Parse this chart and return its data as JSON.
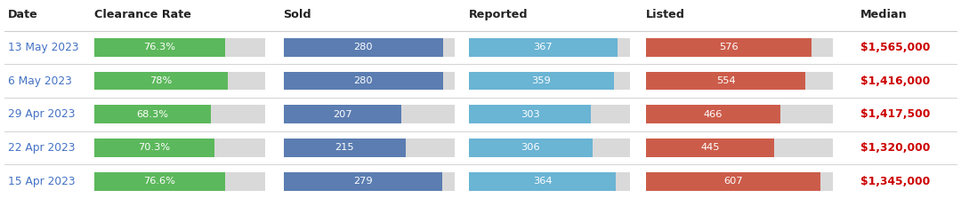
{
  "headers": {
    "date": "Date",
    "clearance": "Clearance Rate",
    "sold": "Sold",
    "reported": "Reported",
    "listed": "Listed",
    "median": "Median"
  },
  "rows": [
    {
      "date": "13 May 2023",
      "clearance_rate": 76.3,
      "clearance_label": "76.3%",
      "sold": 280,
      "reported": 367,
      "listed": 576,
      "median": "$1,565,000"
    },
    {
      "date": "6 May 2023",
      "clearance_rate": 78.0,
      "clearance_label": "78%",
      "sold": 280,
      "reported": 359,
      "listed": 554,
      "median": "$1,416,000"
    },
    {
      "date": "29 Apr 2023",
      "clearance_rate": 68.3,
      "clearance_label": "68.3%",
      "sold": 207,
      "reported": 303,
      "listed": 466,
      "median": "$1,417,500"
    },
    {
      "date": "22 Apr 2023",
      "clearance_rate": 70.3,
      "clearance_label": "70.3%",
      "sold": 215,
      "reported": 306,
      "listed": 445,
      "median": "$1,320,000"
    },
    {
      "date": "15 Apr 2023",
      "clearance_rate": 76.6,
      "clearance_label": "76.6%",
      "sold": 279,
      "reported": 364,
      "listed": 607,
      "median": "$1,345,000"
    }
  ],
  "colors": {
    "clearance_bar": "#5cb85c",
    "bg_gray": "#d9d9d9",
    "sold_bar": "#5b7db1",
    "reported_bar": "#6ab4d4",
    "listed_bar": "#cc5c4a",
    "median_text": "#cc0000",
    "date_text": "#4472c4",
    "header_text": "#222222",
    "row_bg": "#ffffff",
    "separator": "#cccccc",
    "bar_text": "#ffffff"
  },
  "col_x": {
    "date": 0.008,
    "clearance": 0.098,
    "sold": 0.295,
    "reported": 0.488,
    "listed": 0.672,
    "median": 0.895
  },
  "col_bg_width": {
    "clearance": 0.178,
    "sold": 0.178,
    "reported": 0.168,
    "listed": 0.195
  },
  "clearance_max": 100,
  "sold_max": 300,
  "reported_max": 400,
  "listed_max": 650
}
